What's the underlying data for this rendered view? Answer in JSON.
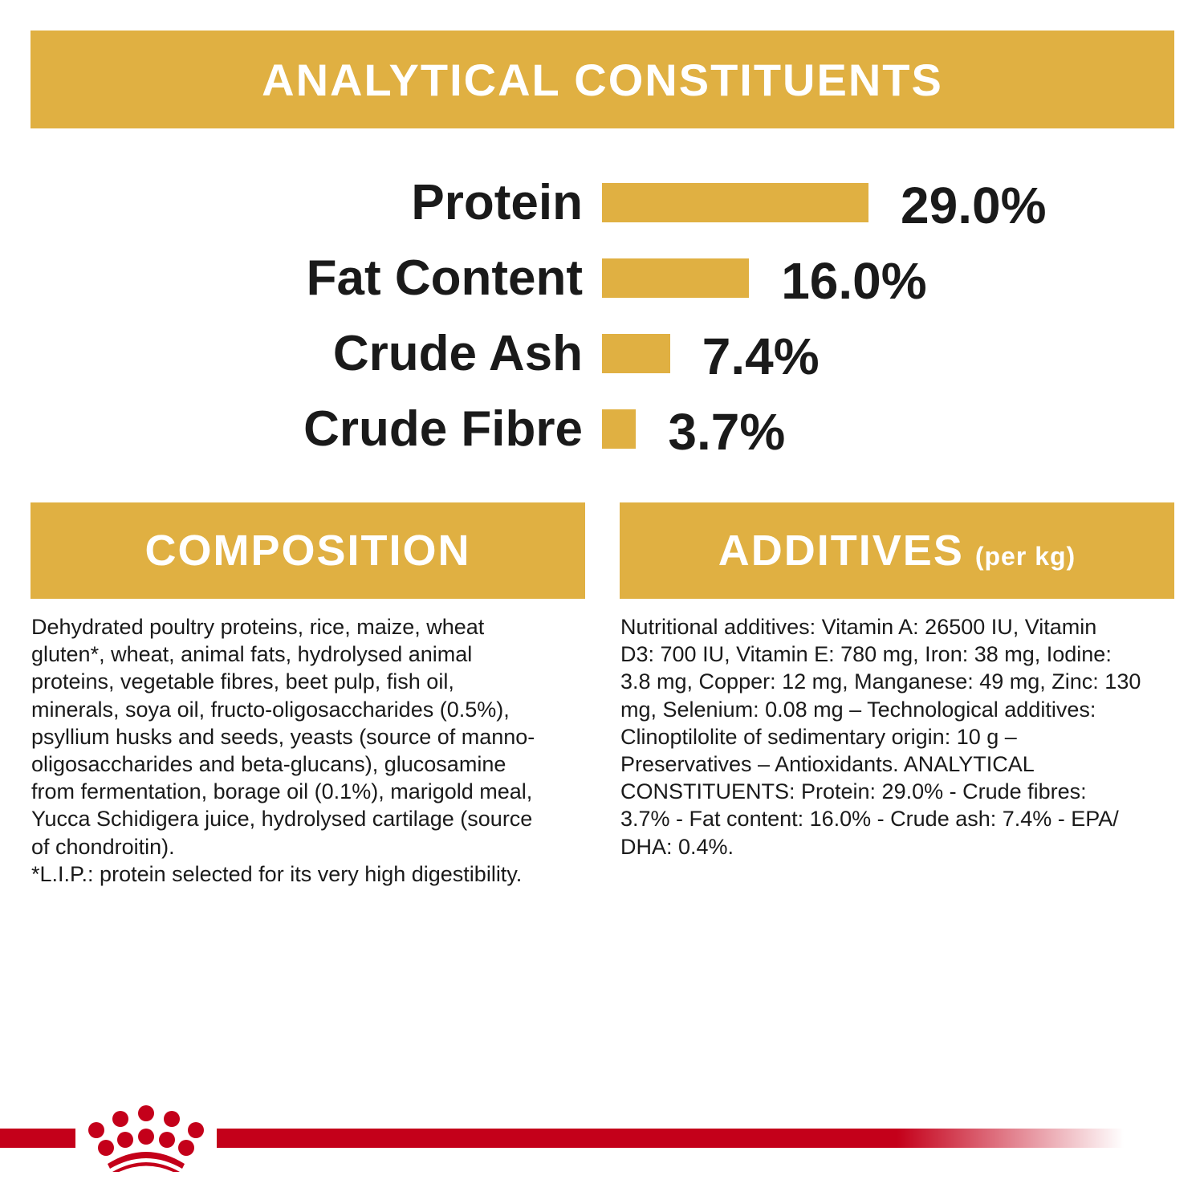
{
  "header": {
    "title": "ANALYTICAL CONSTITUENTS"
  },
  "chart_data": {
    "type": "bar",
    "orientation": "horizontal",
    "categories": [
      "Protein",
      "Fat Content",
      "Crude Ash",
      "Crude Fibre"
    ],
    "values": [
      29.0,
      16.0,
      7.4,
      3.7
    ],
    "data_labels": [
      "29.0%",
      "16.0%",
      "7.4%",
      "3.7%"
    ],
    "unit": "%",
    "grid": false,
    "bar_color": "#E0B042"
  },
  "composition": {
    "title": "COMPOSITION",
    "lines": [
      "Dehydrated poultry proteins, rice, maize, wheat",
      "gluten*, wheat, animal fats, hydrolysed animal",
      "proteins, vegetable fibres, beet pulp, fish oil,",
      "minerals, soya oil, fructo-oligosaccharides (0.5%),",
      "psyllium husks and seeds, yeasts (source of manno-",
      "oligosaccharides and beta-glucans), glucosamine",
      "from fermentation, borage oil (0.1%), marigold meal,",
      "Yucca Schidigera juice, hydrolysed cartilage (source",
      "of chondroitin).",
      "*L.I.P.: protein selected for its very high digestibility."
    ]
  },
  "additives": {
    "title": "ADDITIVES",
    "subtitle": "(per kg)",
    "lines": [
      "Nutritional additives: Vitamin A: 26500 IU, Vitamin",
      "D3: 700 IU, Vitamin E: 780 mg, Iron: 38 mg, Iodine:",
      "3.8 mg, Copper: 12 mg, Manganese: 49 mg, Zinc: 130",
      "mg, Selenium: 0.08 mg – Technological additives:",
      "Clinoptilolite of sedimentary origin: 10 g –",
      "Preservatives – Antioxidants. ANALYTICAL",
      "CONSTITUENTS: Protein: 29.0% - Crude fibres:",
      "3.7% - Fat content: 16.0% - Crude ash: 7.4% - EPA/",
      "DHA: 0.4%."
    ]
  },
  "footer": {
    "logo": "crown-logo",
    "brand_color": "#C4001A"
  }
}
